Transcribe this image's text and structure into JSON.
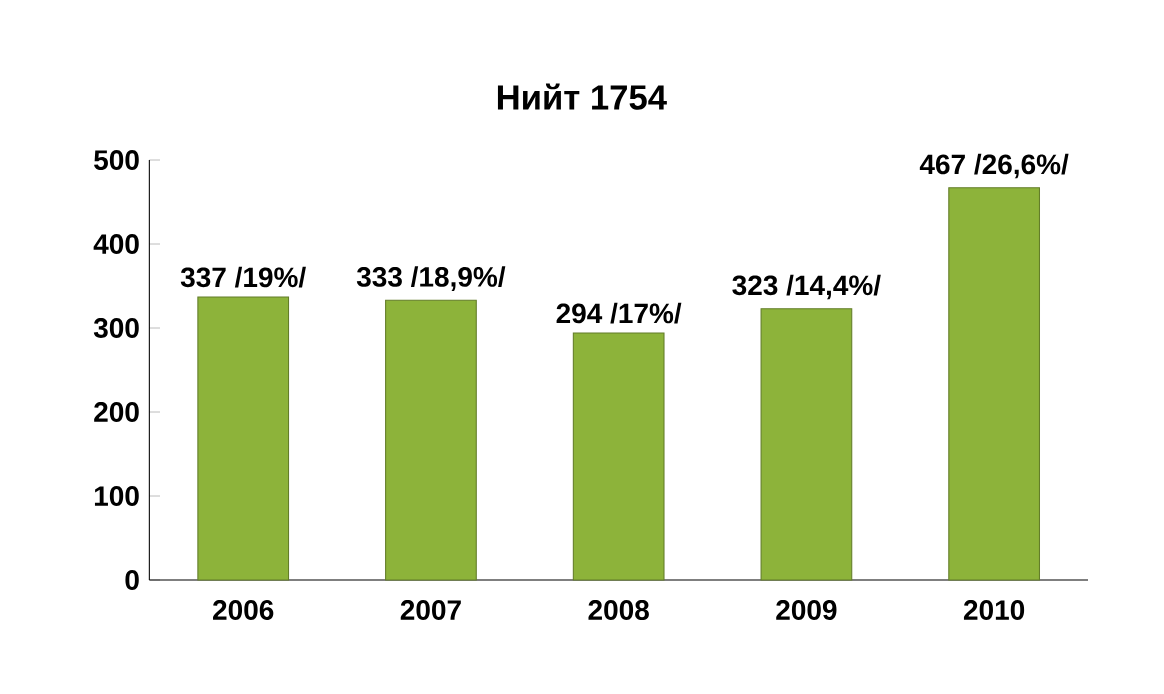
{
  "chart_data": {
    "type": "bar",
    "title": "Нийт 1754",
    "categories": [
      "2006",
      "2007",
      "2008",
      "2009",
      "2010"
    ],
    "values": [
      337,
      333,
      294,
      323,
      467
    ],
    "value_labels": [
      "337 /19%/",
      "333 /18,9%/",
      "294 /17%/",
      "323 /14,4%/",
      "467 /26,6%/"
    ],
    "color": "#8db33a",
    "ylim": [
      0,
      500
    ],
    "yticks": [
      0,
      100,
      200,
      300,
      400,
      500
    ],
    "grid": false
  }
}
